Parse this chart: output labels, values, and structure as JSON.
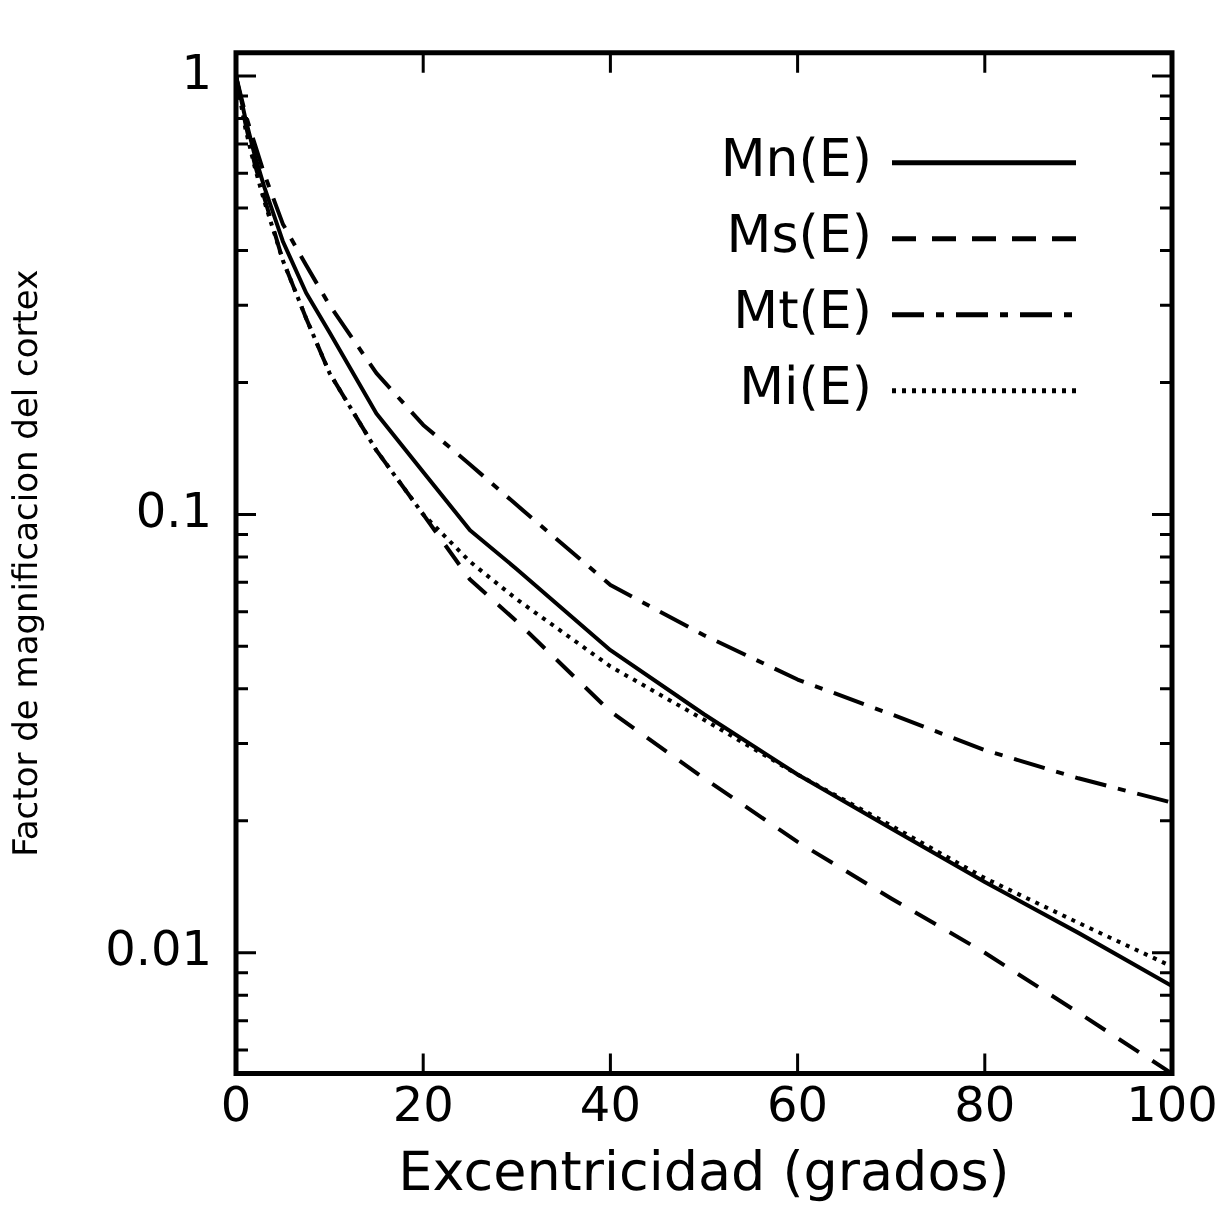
{
  "chart_data": {
    "type": "line",
    "xlabel": "Excentricidad (grados)",
    "ylabel": "Factor de magnificacion del cortex",
    "log": "y",
    "grid": false,
    "legend": "top right",
    "marker": "none",
    "x": [
      0,
      1,
      2,
      3,
      5,
      7.5,
      10,
      15,
      20,
      25,
      30,
      40,
      50,
      60,
      70,
      80,
      90,
      100
    ],
    "xlim": [
      0,
      100
    ],
    "xticks": [
      0,
      20,
      40,
      60,
      80,
      100
    ],
    "ylim": [
      0.0053,
      1.13
    ],
    "yticks": [
      {
        "value": 0.006,
        "label": null
      },
      {
        "value": 0.007,
        "label": null
      },
      {
        "value": 0.008,
        "label": null
      },
      {
        "value": 0.009,
        "label": null
      },
      0.01,
      {
        "value": 0.02,
        "label": null
      },
      {
        "value": 0.03,
        "label": null
      },
      {
        "value": 0.04,
        "label": null
      },
      {
        "value": 0.05,
        "label": null
      },
      {
        "value": 0.06,
        "label": null
      },
      {
        "value": 0.07,
        "label": null
      },
      {
        "value": 0.08,
        "label": null
      },
      {
        "value": 0.09,
        "label": null
      },
      0.1,
      {
        "value": 0.2,
        "label": null
      },
      {
        "value": 0.3,
        "label": null
      },
      {
        "value": 0.4,
        "label": null
      },
      {
        "value": 0.5,
        "label": null
      },
      {
        "value": 0.6,
        "label": null
      },
      {
        "value": 0.7,
        "label": null
      },
      {
        "value": 0.8,
        "label": null
      },
      {
        "value": 0.9,
        "label": null
      },
      1
    ],
    "series": [
      {
        "name": "Mn(E)",
        "color": "#000000",
        "line_style": "solid",
        "values": [
          1,
          0.8,
          0.66,
          0.56,
          0.42,
          0.32,
          0.26,
          0.17,
          0.125,
          0.092,
          0.075,
          0.049,
          0.035,
          0.0255,
          0.0192,
          0.0145,
          0.0111,
          0.0084
        ]
      },
      {
        "name": "Ms(E)",
        "color": "#000000",
        "line_style": "dashed",
        "values": [
          1,
          0.78,
          0.63,
          0.53,
          0.38,
          0.28,
          0.21,
          0.14,
          0.1,
          0.071,
          0.057,
          0.0355,
          0.025,
          0.0179,
          0.0133,
          0.01,
          0.0073,
          0.0053
        ]
      },
      {
        "name": "Mt(E)",
        "color": "#000000",
        "line_style": "dashdot",
        "values": [
          1,
          0.82,
          0.7,
          0.6,
          0.46,
          0.37,
          0.3,
          0.21,
          0.16,
          0.13,
          0.105,
          0.069,
          0.053,
          0.042,
          0.035,
          0.029,
          0.025,
          0.022
        ]
      },
      {
        "name": "Mi(E)",
        "color": "#000000",
        "line_style": "dotted",
        "values": [
          1,
          0.76,
          0.62,
          0.52,
          0.38,
          0.28,
          0.21,
          0.14,
          0.1,
          0.078,
          0.064,
          0.045,
          0.034,
          0.0255,
          0.0195,
          0.0148,
          0.0117,
          0.0093
        ]
      }
    ]
  }
}
